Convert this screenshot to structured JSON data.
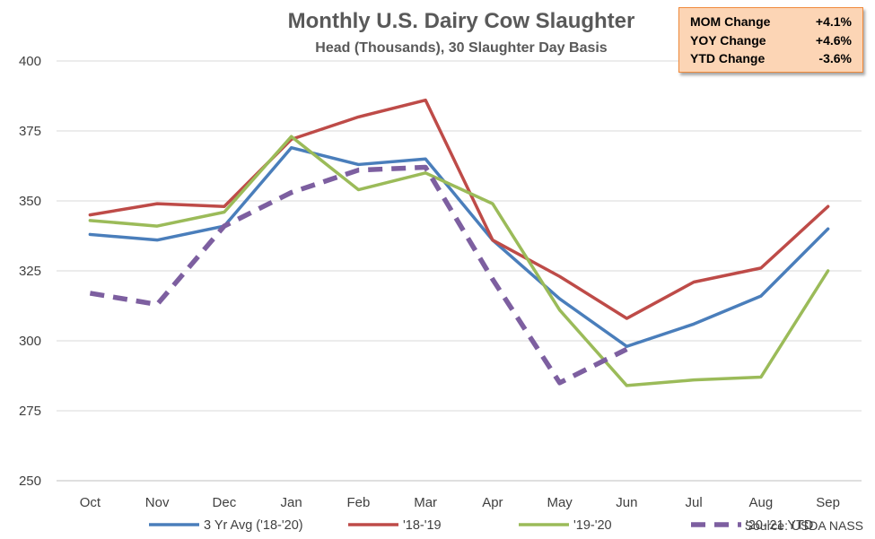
{
  "chart_data": {
    "type": "line",
    "title": "Monthly U.S. Dairy Cow Slaughter",
    "subtitle": "Head (Thousands), 30 Slaughter Day Basis",
    "categories": [
      "Oct",
      "Nov",
      "Dec",
      "Jan",
      "Feb",
      "Mar",
      "Apr",
      "May",
      "Jun",
      "Jul",
      "Aug",
      "Sep"
    ],
    "ylim": [
      250,
      400
    ],
    "yticks": [
      250,
      275,
      300,
      325,
      350,
      375,
      400
    ],
    "grid": true,
    "legend_position": "bottom",
    "series": [
      {
        "name": "3 Yr Avg ('18-'20)",
        "color": "#4a7ebb",
        "dash": "solid",
        "values": [
          338,
          336,
          341,
          369,
          363,
          365,
          336,
          315,
          298,
          306,
          316,
          340
        ]
      },
      {
        "name": "'18-'19",
        "color": "#be4b48",
        "dash": "solid",
        "values": [
          345,
          349,
          348,
          372,
          380,
          386,
          336,
          323,
          308,
          321,
          326,
          348
        ]
      },
      {
        "name": "'19-'20",
        "color": "#9bbb59",
        "dash": "solid",
        "values": [
          343,
          341,
          346,
          373,
          354,
          360,
          349,
          311,
          284,
          286,
          287,
          325
        ]
      },
      {
        "name": "'20-'21 YTD",
        "color": "#7d5fa0",
        "dash": "dashed",
        "values": [
          317,
          313,
          341,
          353,
          361,
          362,
          322,
          285,
          297,
          null,
          null,
          null
        ]
      }
    ],
    "source": "Source: USDA NASS"
  },
  "stats_box": {
    "rows": [
      {
        "label": "MOM Change",
        "value": "+4.1%"
      },
      {
        "label": "YOY Change",
        "value": "+4.6%"
      },
      {
        "label": "YTD Change",
        "value": "-3.6%"
      }
    ],
    "background": "#fcd5b5",
    "border": "#f08a3c"
  }
}
